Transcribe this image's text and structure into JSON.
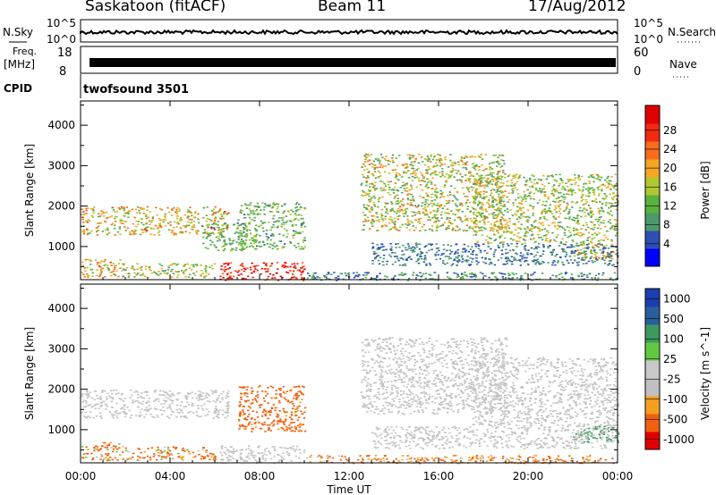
{
  "header": {
    "radar": "Saskatoon  (fitACF)",
    "beam": "Beam 11",
    "date": "17/Aug/2012"
  },
  "status_panels": {
    "nsky_label": "N.Sky",
    "nsky_ticks": [
      "10^5",
      "10^0"
    ],
    "nsearch_label": "N.Search",
    "freq_label_line1": "Freq.",
    "freq_label_line2": "[MHz]",
    "freq_ticks": [
      "18",
      "8"
    ],
    "nave_ticks": [
      "60",
      "0"
    ],
    "nave_label": "Nave",
    "cpid_label": "CPID",
    "cpid_value": "twofsound  3501"
  },
  "colors": {
    "power": [
      "#0000ff",
      "#2e4fb3",
      "#4c9a6c",
      "#58b33c",
      "#b0c730",
      "#f5a623",
      "#f56d1d",
      "#f22a10",
      "#e00000"
    ],
    "velocity": [
      "#e00000",
      "#f06010",
      "#f5a020",
      "#c0c0c0",
      "#c8c8c8",
      "#62c843",
      "#3d9a5e",
      "#2a5f9e",
      "#1b3fb0"
    ]
  },
  "chart_data": [
    {
      "type": "heatmap",
      "title": "Power",
      "xlabel": "",
      "ylabel": "Slant Range [km]",
      "x_ticks": [
        "00:00",
        "04:00",
        "08:00",
        "12:00",
        "16:00",
        "20:00",
        "00:00"
      ],
      "xlim": [
        0,
        24
      ],
      "ylim": [
        180,
        4600
      ],
      "y_ticks": [
        1000,
        2000,
        3000,
        4000
      ],
      "colorbar_label": "Power [dB]",
      "colorbar_ticks": [
        "4",
        "8",
        "12",
        "16",
        "20",
        "24",
        "28"
      ],
      "colorbar_range": [
        0,
        30
      ],
      "scatter_regions": [
        {
          "t": [
            0.0,
            1.8
          ],
          "r": [
            250,
            700
          ],
          "v": [
            12,
            24
          ]
        },
        {
          "t": [
            1.8,
            6.0
          ],
          "r": [
            250,
            600
          ],
          "v": [
            8,
            20
          ]
        },
        {
          "t": [
            0.0,
            6.6
          ],
          "r": [
            1300,
            2000
          ],
          "v": [
            10,
            24
          ]
        },
        {
          "t": [
            6.2,
            10.0
          ],
          "r": [
            180,
            620
          ],
          "v": [
            22,
            30
          ]
        },
        {
          "t": [
            5.4,
            7.4
          ],
          "r": [
            900,
            1600
          ],
          "v": [
            6,
            14
          ]
        },
        {
          "t": [
            7.0,
            10.0
          ],
          "r": [
            950,
            2100
          ],
          "v": [
            6,
            16
          ]
        },
        {
          "t": [
            10.0,
            24.0
          ],
          "r": [
            180,
            380
          ],
          "v": [
            4,
            12
          ]
        },
        {
          "t": [
            12.5,
            19.0
          ],
          "r": [
            1400,
            3300
          ],
          "v": [
            8,
            22
          ]
        },
        {
          "t": [
            17.5,
            24.0
          ],
          "r": [
            1100,
            2800
          ],
          "v": [
            8,
            20
          ]
        },
        {
          "t": [
            22.0,
            24.0
          ],
          "r": [
            700,
            1100
          ],
          "v": [
            12,
            24
          ]
        },
        {
          "t": [
            13.0,
            24.0
          ],
          "r": [
            550,
            1100
          ],
          "v": [
            4,
            10
          ]
        }
      ]
    },
    {
      "type": "heatmap",
      "title": "Velocity",
      "xlabel": "Time UT",
      "ylabel": "Slant Range [km]",
      "x_ticks": [
        "00:00",
        "04:00",
        "08:00",
        "12:00",
        "16:00",
        "20:00",
        "00:00"
      ],
      "xlim": [
        0,
        24
      ],
      "ylim": [
        180,
        4600
      ],
      "y_ticks": [
        1000,
        2000,
        3000,
        4000
      ],
      "colorbar_label": "Velocity [m s^-1]",
      "colorbar_ticks": [
        "1000",
        "500",
        "100",
        "25",
        "-25",
        "-100",
        "-500",
        "-1000"
      ],
      "scatter_regions": [
        {
          "t": [
            0.0,
            1.8
          ],
          "r": [
            250,
            700
          ],
          "v": [
            -400,
            100
          ]
        },
        {
          "t": [
            1.8,
            6.0
          ],
          "r": [
            250,
            600
          ],
          "v": [
            -300,
            50
          ]
        },
        {
          "t": [
            0.0,
            6.6
          ],
          "r": [
            1300,
            2000
          ],
          "v": [
            -25,
            25
          ]
        },
        {
          "t": [
            6.2,
            10.0
          ],
          "r": [
            180,
            620
          ],
          "v": [
            -25,
            25
          ]
        },
        {
          "t": [
            7.0,
            10.0
          ],
          "r": [
            950,
            2100
          ],
          "v": [
            -500,
            -50
          ]
        },
        {
          "t": [
            10.0,
            24.0
          ],
          "r": [
            180,
            380
          ],
          "v": [
            -200,
            0
          ]
        },
        {
          "t": [
            12.5,
            19.0
          ],
          "r": [
            1400,
            3300
          ],
          "v": [
            -25,
            25
          ]
        },
        {
          "t": [
            17.5,
            24.0
          ],
          "r": [
            1100,
            2800
          ],
          "v": [
            -25,
            25
          ]
        },
        {
          "t": [
            22.0,
            24.0
          ],
          "r": [
            700,
            1100
          ],
          "v": [
            100,
            300
          ]
        },
        {
          "t": [
            13.0,
            24.0
          ],
          "r": [
            550,
            1100
          ],
          "v": [
            -25,
            25
          ]
        }
      ]
    }
  ]
}
